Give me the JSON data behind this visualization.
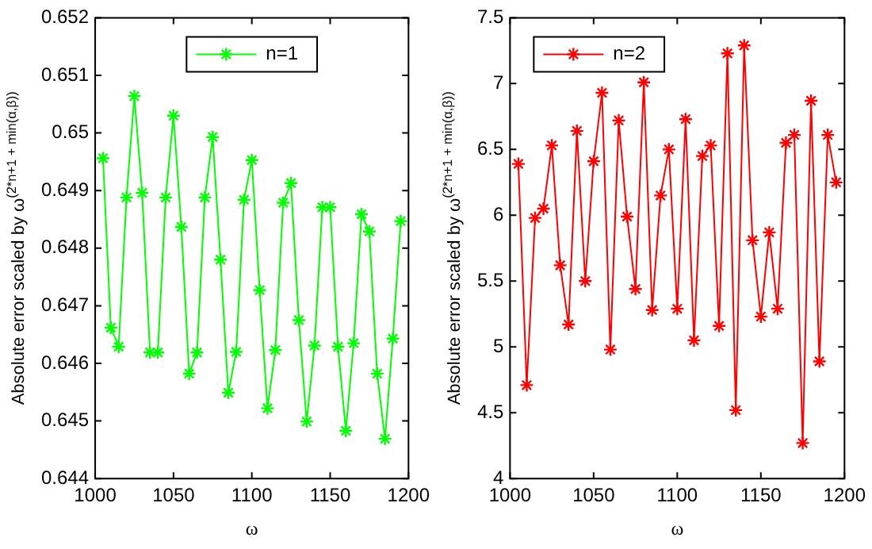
{
  "chart_data": [
    {
      "type": "line",
      "xlabel": "ω",
      "ylabel": "Absolute error scaled by ω$^{(2*n+1 + min(α,β))}$",
      "x": [
        1005,
        1010,
        1015,
        1020,
        1025,
        1030,
        1035,
        1040,
        1045,
        1050,
        1055,
        1060,
        1065,
        1070,
        1075,
        1080,
        1085,
        1090,
        1095,
        1100,
        1105,
        1110,
        1115,
        1120,
        1125,
        1130,
        1135,
        1140,
        1145,
        1150,
        1155,
        1160,
        1165,
        1170,
        1175,
        1180,
        1185,
        1190,
        1195
      ],
      "series": [
        {
          "name": "n=1",
          "color": "#00ff00",
          "values": [
            0.64956,
            0.64662,
            0.64629,
            0.64888,
            0.65064,
            0.64896,
            0.64619,
            0.64619,
            0.64888,
            0.6503,
            0.64837,
            0.64582,
            0.64619,
            0.64888,
            0.64993,
            0.6478,
            0.64549,
            0.6462,
            0.64884,
            0.64953,
            0.64727,
            0.64522,
            0.64623,
            0.64879,
            0.64913,
            0.64675,
            0.64499,
            0.64631,
            0.64871,
            0.64871,
            0.64629,
            0.64483,
            0.64635,
            0.64859,
            0.64829,
            0.64582,
            0.64469,
            0.64643,
            0.64847
          ]
        }
      ],
      "xlim": [
        1000,
        1200
      ],
      "xticks": [
        1000,
        1050,
        1100,
        1150,
        1200
      ],
      "ylim": [
        0.644,
        0.652
      ],
      "yticks": [
        0.644,
        0.645,
        0.646,
        0.647,
        0.648,
        0.649,
        0.65,
        0.651,
        0.652
      ],
      "grid": false,
      "legend": "top",
      "marker": "cross",
      "line_style": "solid"
    },
    {
      "type": "line",
      "xlabel": "ω",
      "ylabel": "Absolute error scaled by ω$^{(2*n+1 + min(α,β))}$",
      "x": [
        1005,
        1010,
        1015,
        1020,
        1025,
        1030,
        1035,
        1040,
        1045,
        1050,
        1055,
        1060,
        1065,
        1070,
        1075,
        1080,
        1085,
        1090,
        1095,
        1100,
        1105,
        1110,
        1115,
        1120,
        1125,
        1130,
        1135,
        1140,
        1145,
        1150,
        1155,
        1160,
        1165,
        1170,
        1175,
        1180,
        1185,
        1190,
        1195
      ],
      "series": [
        {
          "name": "n=2",
          "color": "#ff0000",
          "values": [
            6.39,
            4.71,
            5.98,
            6.05,
            6.53,
            5.62,
            5.17,
            6.64,
            5.5,
            6.41,
            6.93,
            4.98,
            6.72,
            5.99,
            5.44,
            7.01,
            5.28,
            6.15,
            6.5,
            5.29,
            6.73,
            5.05,
            6.45,
            6.53,
            5.16,
            7.23,
            4.52,
            7.29,
            5.81,
            5.23,
            5.87,
            5.29,
            6.55,
            6.61,
            4.27,
            6.87,
            4.89,
            6.61,
            6.25
          ]
        }
      ],
      "xlim": [
        1000,
        1200
      ],
      "xticks": [
        1000,
        1050,
        1100,
        1150,
        1200
      ],
      "ylim": [
        4,
        7.5
      ],
      "yticks": [
        4,
        4.5,
        5,
        5.5,
        6,
        6.5,
        7,
        7.5
      ],
      "grid": false,
      "legend": "top left",
      "marker": "cross",
      "line_style": "solid"
    }
  ]
}
